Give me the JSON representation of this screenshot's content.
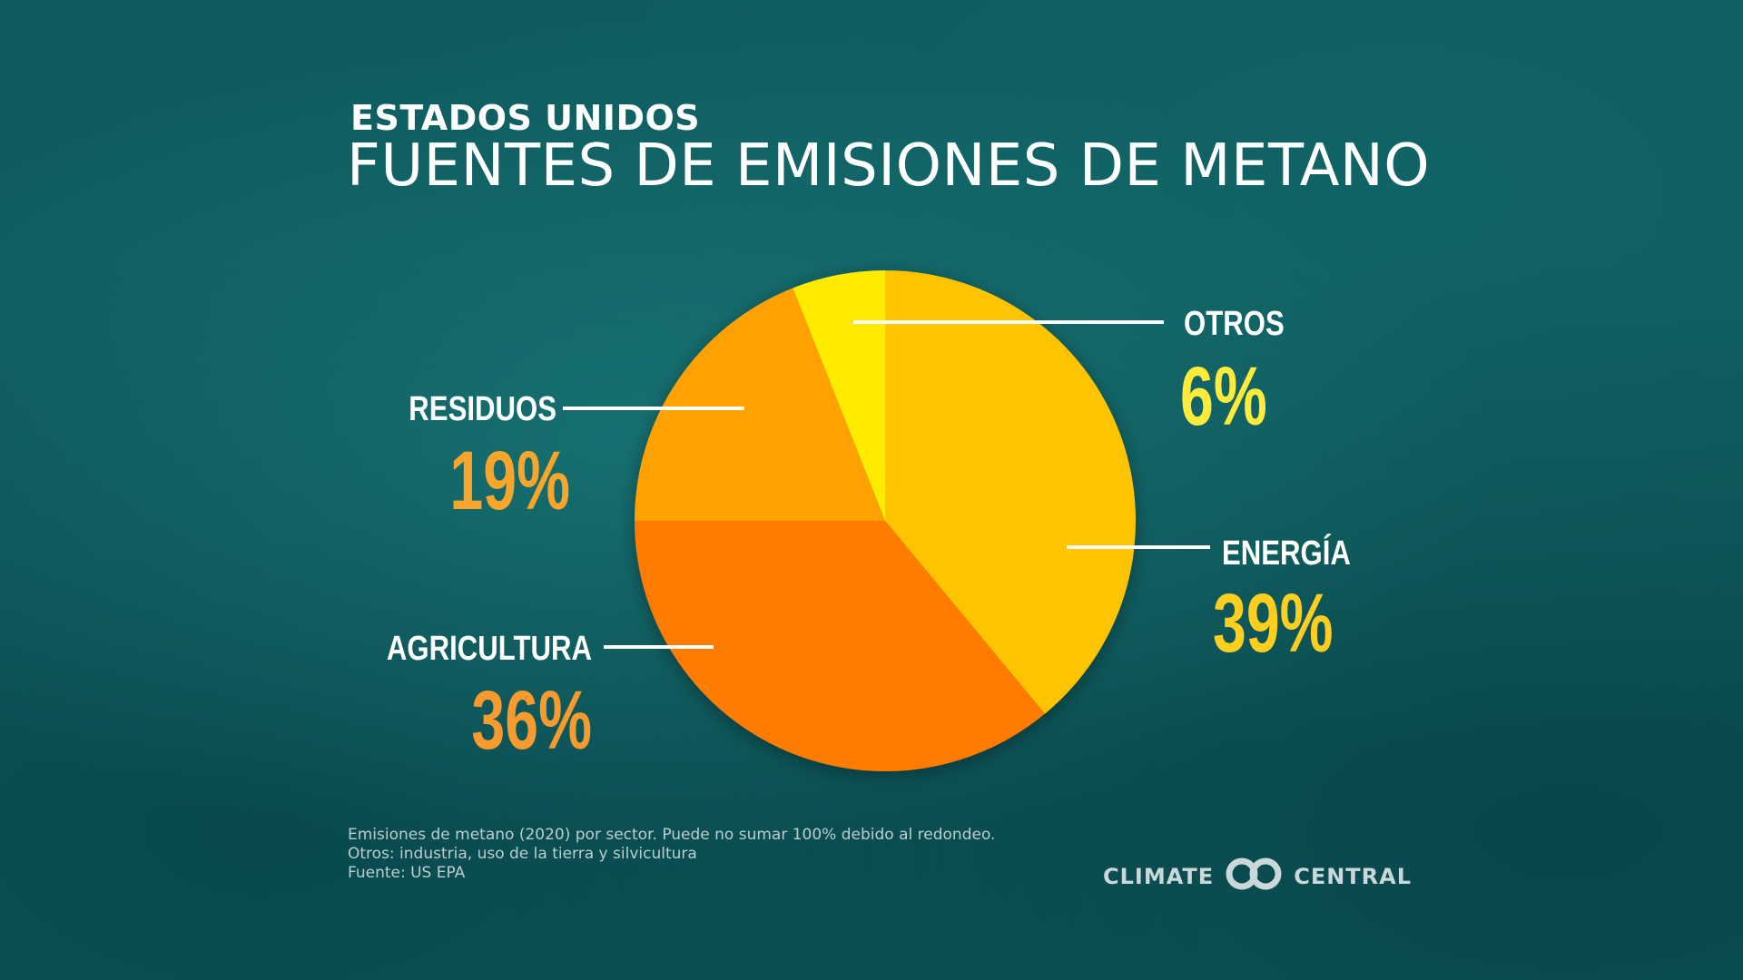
{
  "header": {
    "subtitle": "ESTADOS UNIDOS",
    "title": "FUENTES DE EMISIONES DE METANO"
  },
  "chart_data": {
    "type": "pie",
    "title": "FUENTES DE EMISIONES DE METANO",
    "subtitle": "ESTADOS UNIDOS",
    "start_angle_deg": 0,
    "direction": "clockwise",
    "slices": [
      {
        "label": "ENERGÍA",
        "value": 39,
        "value_label": "39%",
        "color": "#ffc400",
        "text_color": "#ffcf1f"
      },
      {
        "label": "AGRICULTURA",
        "value": 36,
        "value_label": "36%",
        "color": "#ff7c00",
        "text_color": "#f79b2e"
      },
      {
        "label": "RESIDUOS",
        "value": 19,
        "value_label": "19%",
        "color": "#ffa100",
        "text_color": "#f8a52c"
      },
      {
        "label": "OTROS",
        "value": 6,
        "value_label": "6%",
        "color": "#ffeb00",
        "text_color": "#ffeb3b"
      }
    ],
    "legend": "callouts"
  },
  "footnotes": {
    "line1": "Emisiones de metano (2020) por sector. Puede no sumar 100% debido al redondeo.",
    "line2": "Otros: industria, uso de la tierra y silvicultura",
    "line3": "Fuente: US EPA"
  },
  "logo": {
    "left_text": "CLIMATE",
    "right_text": "CENTRAL",
    "color": "#c9d9d9"
  }
}
